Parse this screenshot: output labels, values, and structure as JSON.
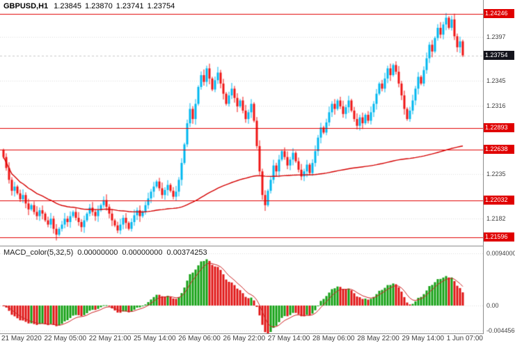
{
  "colors": {
    "background": "#ffffff",
    "bull_candle": "#00b7ef",
    "bear_candle": "#ef1515",
    "moving_average": "#d40000",
    "level_line": "#e00000",
    "level_label_bg": "#e00000",
    "current_label_bg": "#14141c",
    "current_line": "#c8c8c8",
    "histogram_up": "#14a014",
    "histogram_down": "#e01414",
    "signal_line": "#cc2222",
    "grid": "#dcdcdc",
    "axis_text": "#3f3f3f"
  },
  "chart_data": [
    {
      "type": "candlestick",
      "title": "GBPUSD,H1",
      "symbol": "GBPUSD",
      "timeframe": "H1",
      "ohlc_display": {
        "open": "1.23845",
        "high": "1.23870",
        "low": "1.23741",
        "close": "1.23754"
      },
      "price_range": {
        "min": 1.215,
        "max": 1.2441
      },
      "y_grid": [
        {
          "price": 1.2397,
          "label": "1.2397"
        },
        {
          "price": 1.2345,
          "label": "1.2345"
        },
        {
          "price": 1.2316,
          "label": "1.2316"
        },
        {
          "price": 1.2235,
          "label": "1.2235"
        },
        {
          "price": 1.2182,
          "label": "1.2182"
        }
      ],
      "levels": [
        {
          "price": 1.24246,
          "label": "1.24246"
        },
        {
          "price": 1.22893,
          "label": "1.22893"
        },
        {
          "price": 1.22638,
          "label": "1.22638"
        },
        {
          "price": 1.22032,
          "label": "1.22032"
        },
        {
          "price": 1.21596,
          "label": "1.21596"
        }
      ],
      "current_price": {
        "price": 1.23754,
        "label": "1.23754"
      },
      "ma": {
        "type": "cumulative-average",
        "period": 1000
      },
      "x_labels": [
        "21 May 2020",
        "22 May 05:00",
        "22 May 21:00",
        "25 May 14:00",
        "26 May 06:00",
        "26 May 22:00",
        "27 May 14:00",
        "28 May 06:00",
        "28 May 22:00",
        "29 May 14:00",
        "1 Jun 07:00"
      ],
      "closes": [
        1.2255,
        1.2242,
        1.2228,
        1.2215,
        1.222,
        1.2212,
        1.2205,
        1.221,
        1.22,
        1.2193,
        1.2198,
        1.219,
        1.2185,
        1.2192,
        1.2188,
        1.218,
        1.2175,
        1.2182,
        1.217,
        1.2163,
        1.217,
        1.2175,
        1.2182,
        1.2178,
        1.2185,
        1.219,
        1.2183,
        1.2178,
        1.2172,
        1.218,
        1.2188,
        1.2195,
        1.219,
        1.2185,
        1.2192,
        1.2198,
        1.2204,
        1.2196,
        1.2188,
        1.218,
        1.2174,
        1.2168,
        1.2175,
        1.2183,
        1.2177,
        1.217,
        1.2178,
        1.2186,
        1.2192,
        1.2185,
        1.219,
        1.2198,
        1.2206,
        1.2214,
        1.222,
        1.2226,
        1.2218,
        1.221,
        1.2216,
        1.2222,
        1.2215,
        1.2208,
        1.2214,
        1.2228,
        1.2248,
        1.227,
        1.2295,
        1.2312,
        1.23,
        1.2318,
        1.2338,
        1.2352,
        1.2344,
        1.236,
        1.2348,
        1.2335,
        1.2346,
        1.2355,
        1.2342,
        1.233,
        1.2318,
        1.2328,
        1.2336,
        1.2325,
        1.2315,
        1.2322,
        1.231,
        1.23,
        1.2308,
        1.2318,
        1.2298,
        1.2268,
        1.2238,
        1.221,
        1.2198,
        1.2215,
        1.2228,
        1.2245,
        1.2238,
        1.2252,
        1.2262,
        1.2255,
        1.2245,
        1.2252,
        1.226,
        1.225,
        1.224,
        1.2232,
        1.2238,
        1.2246,
        1.2236,
        1.2248,
        1.2262,
        1.2278,
        1.229,
        1.2284,
        1.2296,
        1.2308,
        1.2318,
        1.2312,
        1.2322,
        1.2315,
        1.2306,
        1.2314,
        1.2322,
        1.231,
        1.23,
        1.2292,
        1.2302,
        1.2295,
        1.2305,
        1.2298,
        1.2308,
        1.2318,
        1.233,
        1.2342,
        1.2336,
        1.2348,
        1.236,
        1.2352,
        1.2364,
        1.2356,
        1.2342,
        1.2328,
        1.2312,
        1.23,
        1.231,
        1.2322,
        1.2336,
        1.235,
        1.2342,
        1.2358,
        1.2372,
        1.2388,
        1.238,
        1.2396,
        1.2408,
        1.24,
        1.2412,
        1.242,
        1.2408,
        1.2418,
        1.2398,
        1.2385,
        1.2392,
        1.23754
      ]
    },
    {
      "type": "bar",
      "title": "MACD_color(5,32,5)",
      "display_values": [
        "0.00000000",
        "0.00000000",
        "0.00374253"
      ],
      "params": {
        "fast": 5,
        "slow": 32,
        "signal": 5
      },
      "range": {
        "min": -0.005,
        "max": 0.0105
      },
      "y_labels": [
        {
          "value": 0.0094,
          "label": "0.0094000"
        },
        {
          "value": 0.0,
          "label": "0.00"
        },
        {
          "value": -0.004456,
          "label": "-0.0044560"
        }
      ],
      "note": "histogram = EMA(fast)-EMA(slow) of candle closes; green bar when rising, red when falling; red line = EMA(signal) of histogram"
    }
  ]
}
